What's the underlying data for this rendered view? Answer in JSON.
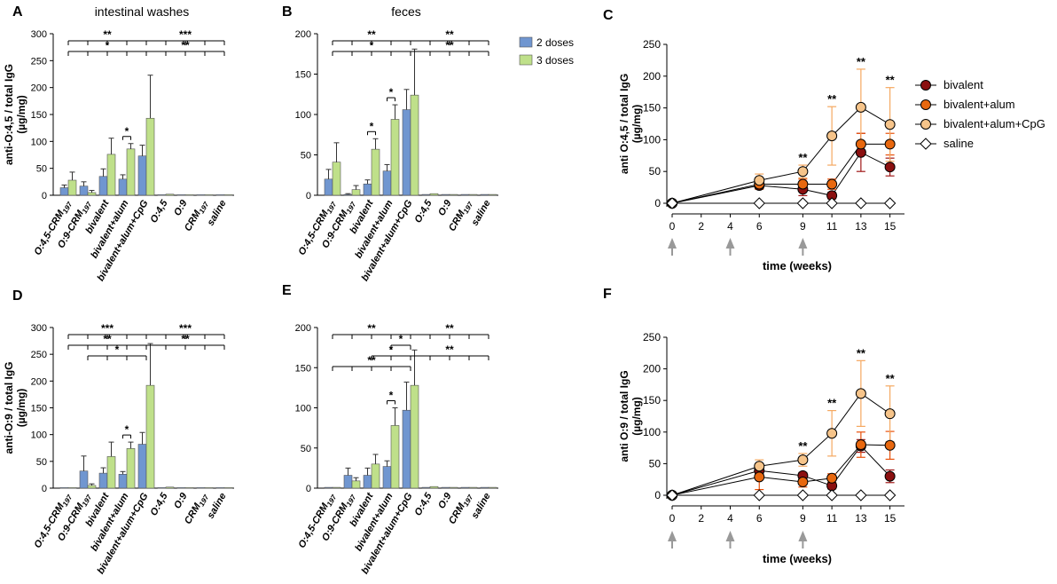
{
  "figure": {
    "colors": {
      "two_doses": "#7096d0",
      "three_doses": "#bfe08a",
      "bivalent": "#8b1010",
      "bivalent_alum": "#e8680f",
      "bivalent_alum_cpg": "#f6c48a",
      "saline": "#ffffff",
      "err_bivalent": "#a01818",
      "err_alum": "#e8500a",
      "err_cpg": "#f5a860"
    }
  },
  "chart_data": [
    {
      "panel": "A",
      "type": "bar",
      "title": "intestinal washes",
      "ylabel": "anti-O:4,5 / total IgG",
      "yunit": "(µg/mg)",
      "ylim": [
        0,
        300
      ],
      "yticks": [
        "0",
        "50",
        "100",
        "150",
        "200",
        "250",
        "300"
      ],
      "categories": [
        "O:4,5-CRM197",
        "O:9-CRM197",
        "bivalent",
        "bivalent+alum",
        "bivalent+alum+CpG",
        "O:4,5",
        "O:9",
        "CRM197",
        "saline"
      ],
      "series": [
        {
          "name": "2 doses",
          "values": [
            14,
            17,
            35,
            30,
            73,
            1,
            1,
            1,
            1
          ],
          "errors": [
            5,
            8,
            14,
            8,
            20,
            0,
            0,
            0,
            0
          ]
        },
        {
          "name": "3 doses",
          "values": [
            28,
            5,
            76,
            86,
            143,
            2,
            1,
            1,
            1
          ],
          "errors": [
            15,
            4,
            30,
            10,
            80,
            0,
            0,
            0,
            0
          ]
        }
      ],
      "significance": [
        {
          "label": "**",
          "from": 0,
          "to": 4,
          "level": 3
        },
        {
          "label": "***",
          "from": 4,
          "to": 8,
          "level": 3
        },
        {
          "label": "*",
          "from": 0,
          "to": 4,
          "level": 2
        },
        {
          "label": "**",
          "from": 4,
          "to": 8,
          "level": 2
        },
        {
          "label": "*",
          "from": 3,
          "to": 3,
          "level": 0
        }
      ]
    },
    {
      "panel": "B",
      "type": "bar",
      "title": "feces",
      "ylabel": "",
      "yunit": "",
      "ylim": [
        0,
        200
      ],
      "yticks": [
        "0",
        "50",
        "100",
        "150",
        "200"
      ],
      "legend": [
        "2 doses",
        "3 doses"
      ],
      "categories": [
        "O:4,5-CRM197",
        "O:9-CRM197",
        "bivalent",
        "bivalent+alum",
        "bivalent+alum+CpG",
        "O:4,5",
        "O:9",
        "CRM197",
        "saline"
      ],
      "series": [
        {
          "name": "2 doses",
          "values": [
            20,
            1,
            14,
            30,
            106,
            1,
            1,
            1,
            1
          ],
          "errors": [
            12,
            1,
            5,
            8,
            25,
            0,
            0,
            0,
            0
          ]
        },
        {
          "name": "3 doses",
          "values": [
            41,
            7,
            57,
            94,
            124,
            2,
            1,
            1,
            1
          ],
          "errors": [
            24,
            5,
            13,
            18,
            57,
            0,
            0,
            0,
            0
          ]
        }
      ],
      "significance": [
        {
          "label": "**",
          "from": 0,
          "to": 4,
          "level": 3
        },
        {
          "label": "**",
          "from": 4,
          "to": 8,
          "level": 3
        },
        {
          "label": "*",
          "from": 0,
          "to": 4,
          "level": 2
        },
        {
          "label": "**",
          "from": 4,
          "to": 8,
          "level": 2
        },
        {
          "label": "*",
          "from": 3,
          "to": 3,
          "level": 0
        },
        {
          "label": "*",
          "from": 2,
          "to": 2,
          "level": 0
        }
      ]
    },
    {
      "panel": "C",
      "type": "line",
      "ylabel": "anti O:4,5 / total IgG",
      "yunit": "(µg/mg)",
      "xlabel": "time (weeks)",
      "ylim": [
        0,
        250
      ],
      "yticks": [
        "0",
        "50",
        "100",
        "150",
        "200",
        "250"
      ],
      "xlim": [
        0,
        16
      ],
      "xticks": [
        "0",
        "2",
        "4",
        "6",
        "9",
        "11",
        "13",
        "15"
      ],
      "immunizations": [
        0,
        4,
        9
      ],
      "series": [
        {
          "name": "bivalent",
          "x": [
            0,
            6,
            9,
            11,
            13,
            15
          ],
          "values": [
            0,
            28,
            22,
            12,
            80,
            57
          ],
          "errors": [
            0,
            5,
            10,
            5,
            30,
            14
          ]
        },
        {
          "name": "bivalent+alum",
          "x": [
            0,
            6,
            9,
            11,
            13,
            15
          ],
          "values": [
            0,
            30,
            30,
            30,
            93,
            93
          ],
          "errors": [
            0,
            8,
            8,
            8,
            17,
            17
          ]
        },
        {
          "name": "bivalent+alum+CpG",
          "x": [
            0,
            6,
            9,
            11,
            13,
            15
          ],
          "values": [
            0,
            36,
            50,
            106,
            151,
            124
          ],
          "errors": [
            0,
            10,
            10,
            46,
            60,
            58
          ]
        },
        {
          "name": "saline",
          "x": [
            0,
            6,
            9,
            11,
            13,
            15
          ],
          "values": [
            0,
            0,
            0,
            0,
            0,
            0
          ],
          "errors": [
            0,
            0,
            0,
            0,
            0,
            0
          ]
        }
      ],
      "significance": [
        {
          "x": 9,
          "label": "**"
        },
        {
          "x": 11,
          "label": "**"
        },
        {
          "x": 13,
          "label": "**"
        },
        {
          "x": 15,
          "label": "**"
        }
      ]
    },
    {
      "panel": "D",
      "type": "bar",
      "ylabel": "anti-O:9 / total IgG",
      "yunit": "(µg/mg)",
      "ylim": [
        0,
        300
      ],
      "yticks": [
        "0",
        "50",
        "100",
        "150",
        "200",
        "250",
        "300"
      ],
      "categories": [
        "O:4,5-CRM197",
        "O:9-CRM197",
        "bivalent",
        "bivalent+alum",
        "bivalent+alum+CpG",
        "O:4,5",
        "O:9",
        "CRM197",
        "saline"
      ],
      "series": [
        {
          "name": "2 doses",
          "values": [
            1,
            32,
            28,
            26,
            82,
            1,
            1,
            1,
            1
          ],
          "errors": [
            0,
            28,
            10,
            5,
            22,
            0,
            0,
            0,
            0
          ]
        },
        {
          "name": "3 doses",
          "values": [
            1,
            5,
            59,
            74,
            192,
            2,
            1,
            1,
            1
          ],
          "errors": [
            0,
            3,
            27,
            12,
            78,
            0,
            0,
            0,
            0
          ]
        }
      ],
      "significance": [
        {
          "label": "***",
          "from": 0,
          "to": 4,
          "level": 3
        },
        {
          "label": "***",
          "from": 4,
          "to": 8,
          "level": 3
        },
        {
          "label": "**",
          "from": 0,
          "to": 4,
          "level": 2
        },
        {
          "label": "**",
          "from": 4,
          "to": 8,
          "level": 2
        },
        {
          "label": "*",
          "from": 1,
          "to": 4,
          "level": 1
        },
        {
          "label": "*",
          "from": 3,
          "to": 3,
          "level": 0
        }
      ]
    },
    {
      "panel": "E",
      "type": "bar",
      "ylabel": "",
      "yunit": "",
      "ylim": [
        0,
        200
      ],
      "yticks": [
        "0",
        "50",
        "100",
        "150",
        "200"
      ],
      "categories": [
        "O:4,5-CRM197",
        "O:9-CRM197",
        "bivalent",
        "bivalent+alum",
        "bivalent+alum+CpG",
        "O:4,5",
        "O:9",
        "CRM197",
        "saline"
      ],
      "series": [
        {
          "name": "2 doses",
          "values": [
            1,
            16,
            16,
            27,
            97,
            1,
            1,
            1,
            1
          ],
          "errors": [
            0,
            9,
            9,
            7,
            35,
            0,
            0,
            0,
            0
          ]
        },
        {
          "name": "3 doses",
          "values": [
            1,
            9,
            30,
            78,
            128,
            2,
            1,
            1,
            1
          ],
          "errors": [
            0,
            4,
            12,
            22,
            44,
            0,
            0,
            0,
            0
          ]
        }
      ],
      "significance": [
        {
          "label": "**",
          "from": 0,
          "to": 4,
          "level": 5
        },
        {
          "label": "**",
          "from": 4,
          "to": 8,
          "level": 5
        },
        {
          "label": "*",
          "from": 3,
          "to": 4,
          "level": 4
        },
        {
          "label": "*",
          "from": 2,
          "to": 4,
          "level": 3
        },
        {
          "label": "**",
          "from": 4,
          "to": 8,
          "level": 3
        },
        {
          "label": "**",
          "from": 0,
          "to": 4,
          "level": 2
        },
        {
          "label": "*",
          "from": 3,
          "to": 3,
          "level": 0
        }
      ]
    },
    {
      "panel": "F",
      "type": "line",
      "ylabel": "anti O:9 / total IgG",
      "yunit": "(µg/mg)",
      "xlabel": "time (weeks)",
      "ylim": [
        0,
        250
      ],
      "yticks": [
        "0",
        "50",
        "100",
        "150",
        "200",
        "250"
      ],
      "xlim": [
        0,
        16
      ],
      "xticks": [
        "0",
        "2",
        "4",
        "6",
        "9",
        "11",
        "13",
        "15"
      ],
      "immunizations": [
        0,
        4,
        9
      ],
      "series": [
        {
          "name": "bivalent",
          "x": [
            0,
            6,
            9,
            11,
            13,
            15
          ],
          "values": [
            0,
            39,
            31,
            15,
            78,
            30
          ],
          "errors": [
            0,
            5,
            5,
            5,
            10,
            10
          ]
        },
        {
          "name": "bivalent+alum",
          "x": [
            0,
            6,
            9,
            11,
            13,
            15
          ],
          "values": [
            0,
            29,
            21,
            27,
            80,
            79
          ],
          "errors": [
            0,
            20,
            8,
            7,
            20,
            22
          ]
        },
        {
          "name": "bivalent+alum+CpG",
          "x": [
            0,
            6,
            9,
            11,
            13,
            15
          ],
          "values": [
            0,
            46,
            56,
            98,
            161,
            129
          ],
          "errors": [
            0,
            10,
            10,
            36,
            52,
            44
          ]
        },
        {
          "name": "saline",
          "x": [
            0,
            6,
            9,
            11,
            13,
            15
          ],
          "values": [
            0,
            0,
            0,
            0,
            0,
            0
          ],
          "errors": [
            0,
            0,
            0,
            0,
            0,
            0
          ]
        }
      ],
      "significance": [
        {
          "x": 9,
          "label": "**"
        },
        {
          "x": 11,
          "label": "**"
        },
        {
          "x": 13,
          "label": "**"
        },
        {
          "x": 15,
          "label": "**"
        }
      ]
    }
  ]
}
